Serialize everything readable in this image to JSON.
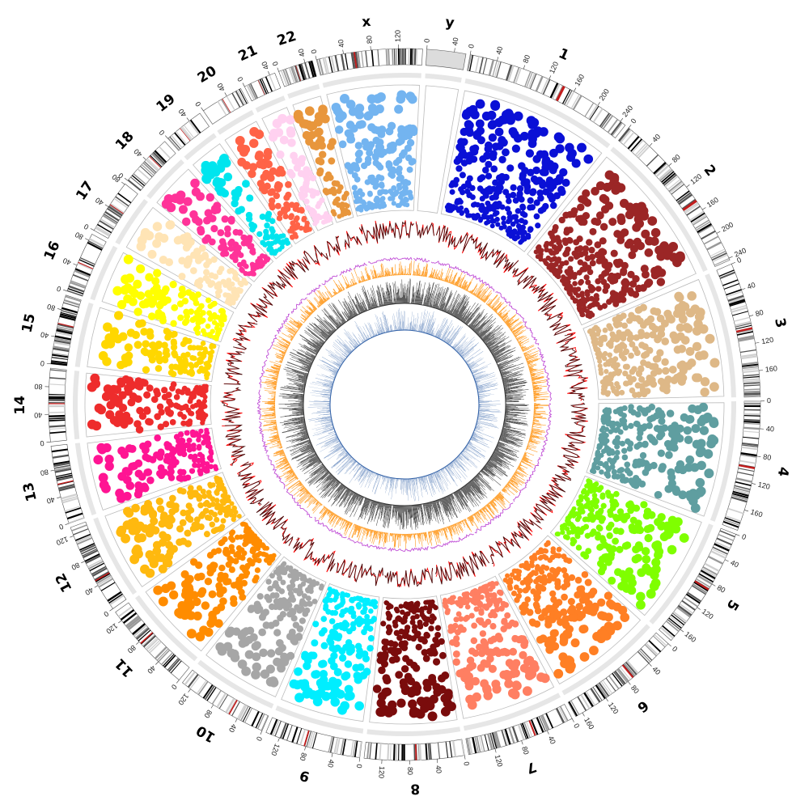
{
  "chart_data": {
    "type": "circos",
    "title": "",
    "chromosomes": [
      {
        "name": "1",
        "length": 249,
        "ticks": [
          0,
          40,
          80,
          120,
          160,
          200,
          240
        ],
        "color": "#0a10d6",
        "tile": "#ffffff"
      },
      {
        "name": "2",
        "length": 243,
        "ticks": [
          0,
          40,
          80,
          120,
          160,
          200,
          240
        ],
        "color": "#9b2626",
        "tile": "#ffffff"
      },
      {
        "name": "3",
        "length": 198,
        "ticks": [
          0,
          40,
          80,
          120,
          160
        ],
        "color": "#deb887",
        "tile": "#ffffff"
      },
      {
        "name": "4",
        "length": 191,
        "ticks": [
          0,
          40,
          80,
          120,
          160
        ],
        "color": "#5f9ea0",
        "tile": "#ffffff"
      },
      {
        "name": "5",
        "length": 181,
        "ticks": [
          0,
          40,
          80,
          120,
          160
        ],
        "color": "#7fff00",
        "tile": "#ffffff"
      },
      {
        "name": "6",
        "length": 171,
        "ticks": [
          0,
          40,
          80,
          120,
          160
        ],
        "color": "#ff7f24",
        "tile": "#ffffff"
      },
      {
        "name": "7",
        "length": 159,
        "ticks": [
          0,
          40,
          80,
          120
        ],
        "color": "#ff7f62",
        "tile": "#ffffff"
      },
      {
        "name": "8",
        "length": 146,
        "ticks": [
          0,
          40,
          80,
          120
        ],
        "color": "#7a0c0c",
        "tile": "#ffffff"
      },
      {
        "name": "9",
        "length": 141,
        "ticks": [
          0,
          40,
          80,
          120
        ],
        "color": "#00eeff",
        "tile": "#ffffff"
      },
      {
        "name": "10",
        "length": 135,
        "ticks": [
          0,
          40,
          80,
          120
        ],
        "color": "#a6a6a6",
        "tile": "#ffffff"
      },
      {
        "name": "11",
        "length": 135,
        "ticks": [
          0,
          40,
          80,
          120
        ],
        "color": "#ff8c00",
        "tile": "#ffffff"
      },
      {
        "name": "12",
        "length": 133,
        "ticks": [
          0,
          40,
          80,
          120
        ],
        "color": "#ffb90f",
        "tile": "#ffffff"
      },
      {
        "name": "13",
        "length": 115,
        "ticks": [
          0,
          40,
          80
        ],
        "color": "#ff1493",
        "tile": "#ffffff"
      },
      {
        "name": "14",
        "length": 107,
        "ticks": [
          0,
          40,
          80
        ],
        "color": "#ee2c2c",
        "tile": "#ffffff"
      },
      {
        "name": "15",
        "length": 102,
        "ticks": [
          0,
          40,
          80
        ],
        "color": "#ffd700",
        "tile": "#ffffff"
      },
      {
        "name": "16",
        "length": 90,
        "ticks": [
          0,
          40,
          80
        ],
        "color": "#ffff00",
        "tile": "#ffffff"
      },
      {
        "name": "17",
        "length": 81,
        "ticks": [
          0,
          40,
          80
        ],
        "color": "#ffe4b5",
        "tile": "#ffffff"
      },
      {
        "name": "18",
        "length": 78,
        "ticks": [
          0,
          40
        ],
        "color": "#ff3399",
        "tile": "#ffffff"
      },
      {
        "name": "19",
        "length": 59,
        "ticks": [
          0,
          40
        ],
        "color": "#00e5ee",
        "tile": "#ffffff"
      },
      {
        "name": "20",
        "length": 63,
        "ticks": [
          0,
          40
        ],
        "color": "#ff6347",
        "tile": "#ffffff"
      },
      {
        "name": "21",
        "length": 48,
        "ticks": [
          0,
          40
        ],
        "color": "#ffd1f0",
        "tile": "#ffffff"
      },
      {
        "name": "22",
        "length": 51,
        "ticks": [
          0,
          40
        ],
        "color": "#e8963c",
        "tile": "#ffffff"
      },
      {
        "name": "x",
        "length": 155,
        "ticks": [
          0,
          40,
          80,
          120
        ],
        "color": "#73b4f0",
        "tile": "#ffffff"
      },
      {
        "name": "y",
        "length": 57,
        "ticks": [
          0,
          40
        ],
        "color": "#9c9c9c",
        "tile": "#dcdcdc"
      }
    ],
    "tracks": {
      "scatter": {
        "description": "points per chromosome, colored by chromosome",
        "point_color_by": "chromosome"
      },
      "line": {
        "colors": [
          "#4a1010",
          "#ff0000"
        ]
      },
      "purple_line": {
        "color": "#c04ed6"
      },
      "histogram_orange": {
        "color": "#ff8c00"
      },
      "histogram_black": {
        "color": "#333333"
      },
      "histogram_blue": {
        "color": "#2f5fa6"
      }
    },
    "ideogram": {
      "band_colors": [
        "#000000",
        "#555555",
        "#999999",
        "#d0d0d0",
        "#ffffff"
      ],
      "centromere_color": "#c21d1d"
    }
  }
}
